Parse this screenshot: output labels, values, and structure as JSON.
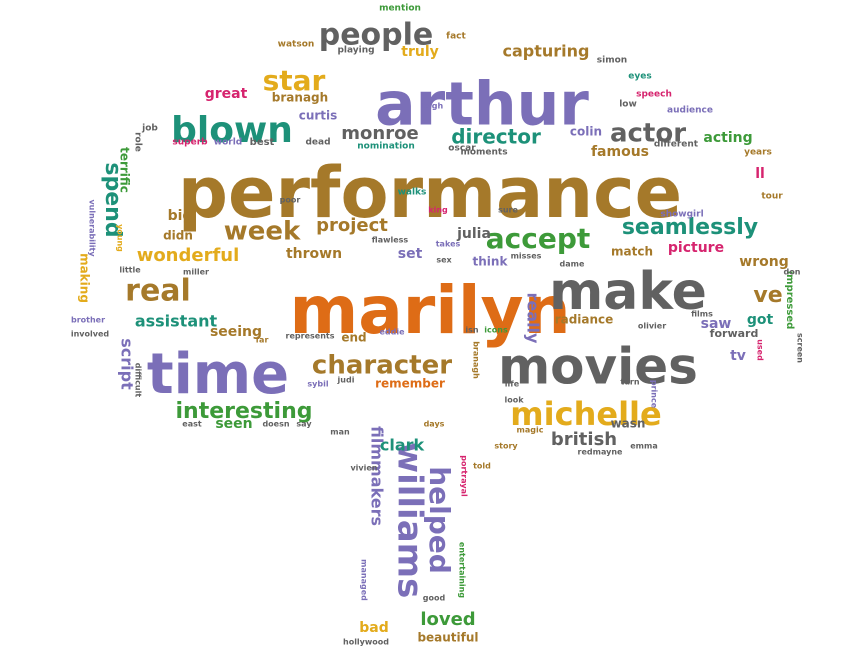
{
  "palette": {
    "brown": "#a5792a",
    "purple": "#7b6fb8",
    "orange": "#de6c16",
    "gray": "#616161",
    "green": "#3d9a39",
    "teal": "#1d9179",
    "gold": "#e3ab1c",
    "pink": "#d6246e"
  },
  "words": [
    {
      "text": "performance",
      "color": "brown"
    },
    {
      "text": "marilyn",
      "color": "orange"
    },
    {
      "text": "arthur",
      "color": "purple"
    },
    {
      "text": "make",
      "color": "gray"
    },
    {
      "text": "movies",
      "color": "gray"
    },
    {
      "text": "time",
      "color": "purple"
    },
    {
      "text": "michelle",
      "color": "gold"
    },
    {
      "text": "blown",
      "color": "teal"
    },
    {
      "text": "people",
      "color": "gray"
    },
    {
      "text": "character",
      "color": "brown"
    },
    {
      "text": "williams",
      "color": "purple"
    },
    {
      "text": "helped",
      "color": "purple"
    },
    {
      "text": "accept",
      "color": "green"
    },
    {
      "text": "seamlessly",
      "color": "teal"
    },
    {
      "text": "week",
      "color": "brown"
    },
    {
      "text": "real",
      "color": "brown"
    },
    {
      "text": "star",
      "color": "gold"
    },
    {
      "text": "actor",
      "color": "gray"
    },
    {
      "text": "director",
      "color": "teal"
    },
    {
      "text": "interesting",
      "color": "green"
    },
    {
      "text": "project",
      "color": "brown"
    },
    {
      "text": "british",
      "color": "gray"
    },
    {
      "text": "wonderful",
      "color": "gold"
    },
    {
      "text": "spend",
      "color": "teal"
    },
    {
      "text": "monroe",
      "color": "gray"
    },
    {
      "text": "capturing",
      "color": "brown"
    },
    {
      "text": "assistant",
      "color": "teal"
    },
    {
      "text": "really",
      "color": "purple"
    },
    {
      "text": "loved",
      "color": "green"
    },
    {
      "text": "ve",
      "color": "brown"
    },
    {
      "text": "filmmakers",
      "color": "purple"
    },
    {
      "text": "clark",
      "color": "teal"
    },
    {
      "text": "script",
      "color": "purple"
    },
    {
      "text": "truly",
      "color": "gold"
    },
    {
      "text": "branagh",
      "color": "brown"
    },
    {
      "text": "great",
      "color": "pink"
    },
    {
      "text": "acting",
      "color": "green"
    },
    {
      "text": "famous",
      "color": "brown"
    },
    {
      "text": "colin",
      "color": "purple"
    },
    {
      "text": "seeing",
      "color": "brown"
    },
    {
      "text": "thrown",
      "color": "brown"
    },
    {
      "text": "julia",
      "color": "gray"
    },
    {
      "text": "set",
      "color": "purple"
    },
    {
      "text": "picture",
      "color": "pink"
    },
    {
      "text": "wrong",
      "color": "brown"
    },
    {
      "text": "got",
      "color": "teal"
    },
    {
      "text": "saw",
      "color": "purple"
    },
    {
      "text": "tv",
      "color": "purple"
    },
    {
      "text": "remember",
      "color": "orange"
    },
    {
      "text": "radiance",
      "color": "brown"
    },
    {
      "text": "seen",
      "color": "green"
    },
    {
      "text": "wasn",
      "color": "gray"
    },
    {
      "text": "end",
      "color": "brown"
    },
    {
      "text": "think",
      "color": "purple"
    },
    {
      "text": "big",
      "color": "brown"
    },
    {
      "text": "didn",
      "color": "brown"
    },
    {
      "text": "terrific",
      "color": "green"
    },
    {
      "text": "beautiful",
      "color": "brown"
    },
    {
      "text": "bad",
      "color": "gold"
    },
    {
      "text": "ll",
      "color": "pink"
    },
    {
      "text": "match",
      "color": "brown"
    },
    {
      "text": "making",
      "color": "gold"
    },
    {
      "text": "forward",
      "color": "gray"
    },
    {
      "text": "curtis",
      "color": "purple"
    },
    {
      "text": "impressed",
      "color": "green"
    },
    {
      "text": "best",
      "color": "gray"
    },
    {
      "text": "world",
      "color": "purple"
    },
    {
      "text": "superb",
      "color": "pink"
    },
    {
      "text": "role",
      "color": "gray"
    },
    {
      "text": "job",
      "color": "gray"
    },
    {
      "text": "dead",
      "color": "gray"
    },
    {
      "text": "nomination",
      "color": "teal"
    },
    {
      "text": "oscar",
      "color": "gray"
    },
    {
      "text": "moments",
      "color": "gray"
    },
    {
      "text": "different",
      "color": "gray"
    },
    {
      "text": "years",
      "color": "brown"
    },
    {
      "text": "tour",
      "color": "brown"
    },
    {
      "text": "showgirl",
      "color": "purple"
    },
    {
      "text": "walks",
      "color": "teal"
    },
    {
      "text": "king",
      "color": "pink"
    },
    {
      "text": "sure",
      "color": "gray"
    },
    {
      "text": "takes",
      "color": "purple"
    },
    {
      "text": "flawless",
      "color": "gray"
    },
    {
      "text": "poor",
      "color": "gray"
    },
    {
      "text": "young",
      "color": "gold"
    },
    {
      "text": "vulnerability",
      "color": "purple"
    },
    {
      "text": "little",
      "color": "gray"
    },
    {
      "text": "miller",
      "color": "gray"
    },
    {
      "text": "brother",
      "color": "purple"
    },
    {
      "text": "involved",
      "color": "gray"
    },
    {
      "text": "difficult",
      "color": "gray"
    },
    {
      "text": "far",
      "color": "brown"
    },
    {
      "text": "represents",
      "color": "gray"
    },
    {
      "text": "eddie",
      "color": "purple"
    },
    {
      "text": "isn",
      "color": "gray"
    },
    {
      "text": "icons",
      "color": "green"
    },
    {
      "text": "sybil",
      "color": "purple"
    },
    {
      "text": "judi",
      "color": "gray"
    },
    {
      "text": "east",
      "color": "gray"
    },
    {
      "text": "doesn",
      "color": "gray"
    },
    {
      "text": "say",
      "color": "gray"
    },
    {
      "text": "man",
      "color": "gray"
    },
    {
      "text": "vivien",
      "color": "gray"
    },
    {
      "text": "days",
      "color": "brown"
    },
    {
      "text": "portrayal",
      "color": "pink"
    },
    {
      "text": "told",
      "color": "brown"
    },
    {
      "text": "story",
      "color": "brown"
    },
    {
      "text": "magic",
      "color": "brown"
    },
    {
      "text": "emma",
      "color": "gray"
    },
    {
      "text": "redmayne",
      "color": "gray"
    },
    {
      "text": "branagh",
      "color": "brown"
    },
    {
      "text": "life",
      "color": "gray"
    },
    {
      "text": "look",
      "color": "gray"
    },
    {
      "text": "dame",
      "color": "gray"
    },
    {
      "text": "misses",
      "color": "gray"
    },
    {
      "text": "sex",
      "color": "gray"
    },
    {
      "text": "don",
      "color": "gray"
    },
    {
      "text": "olivier",
      "color": "gray"
    },
    {
      "text": "films",
      "color": "gray"
    },
    {
      "text": "turn",
      "color": "gray"
    },
    {
      "text": "prince",
      "color": "purple"
    },
    {
      "text": "screen",
      "color": "gray"
    },
    {
      "text": "good",
      "color": "gray"
    },
    {
      "text": "entertaining",
      "color": "green"
    },
    {
      "text": "managed",
      "color": "purple"
    },
    {
      "text": "hollywood",
      "color": "gray"
    },
    {
      "text": "mention",
      "color": "green"
    },
    {
      "text": "fact",
      "color": "brown"
    },
    {
      "text": "watson",
      "color": "brown"
    },
    {
      "text": "playing",
      "color": "gray"
    },
    {
      "text": "simon",
      "color": "gray"
    },
    {
      "text": "eyes",
      "color": "teal"
    },
    {
      "text": "speech",
      "color": "pink"
    },
    {
      "text": "low",
      "color": "gray"
    },
    {
      "text": "audience",
      "color": "purple"
    },
    {
      "text": "leigh",
      "color": "purple"
    },
    {
      "text": "used",
      "color": "pink"
    }
  ]
}
